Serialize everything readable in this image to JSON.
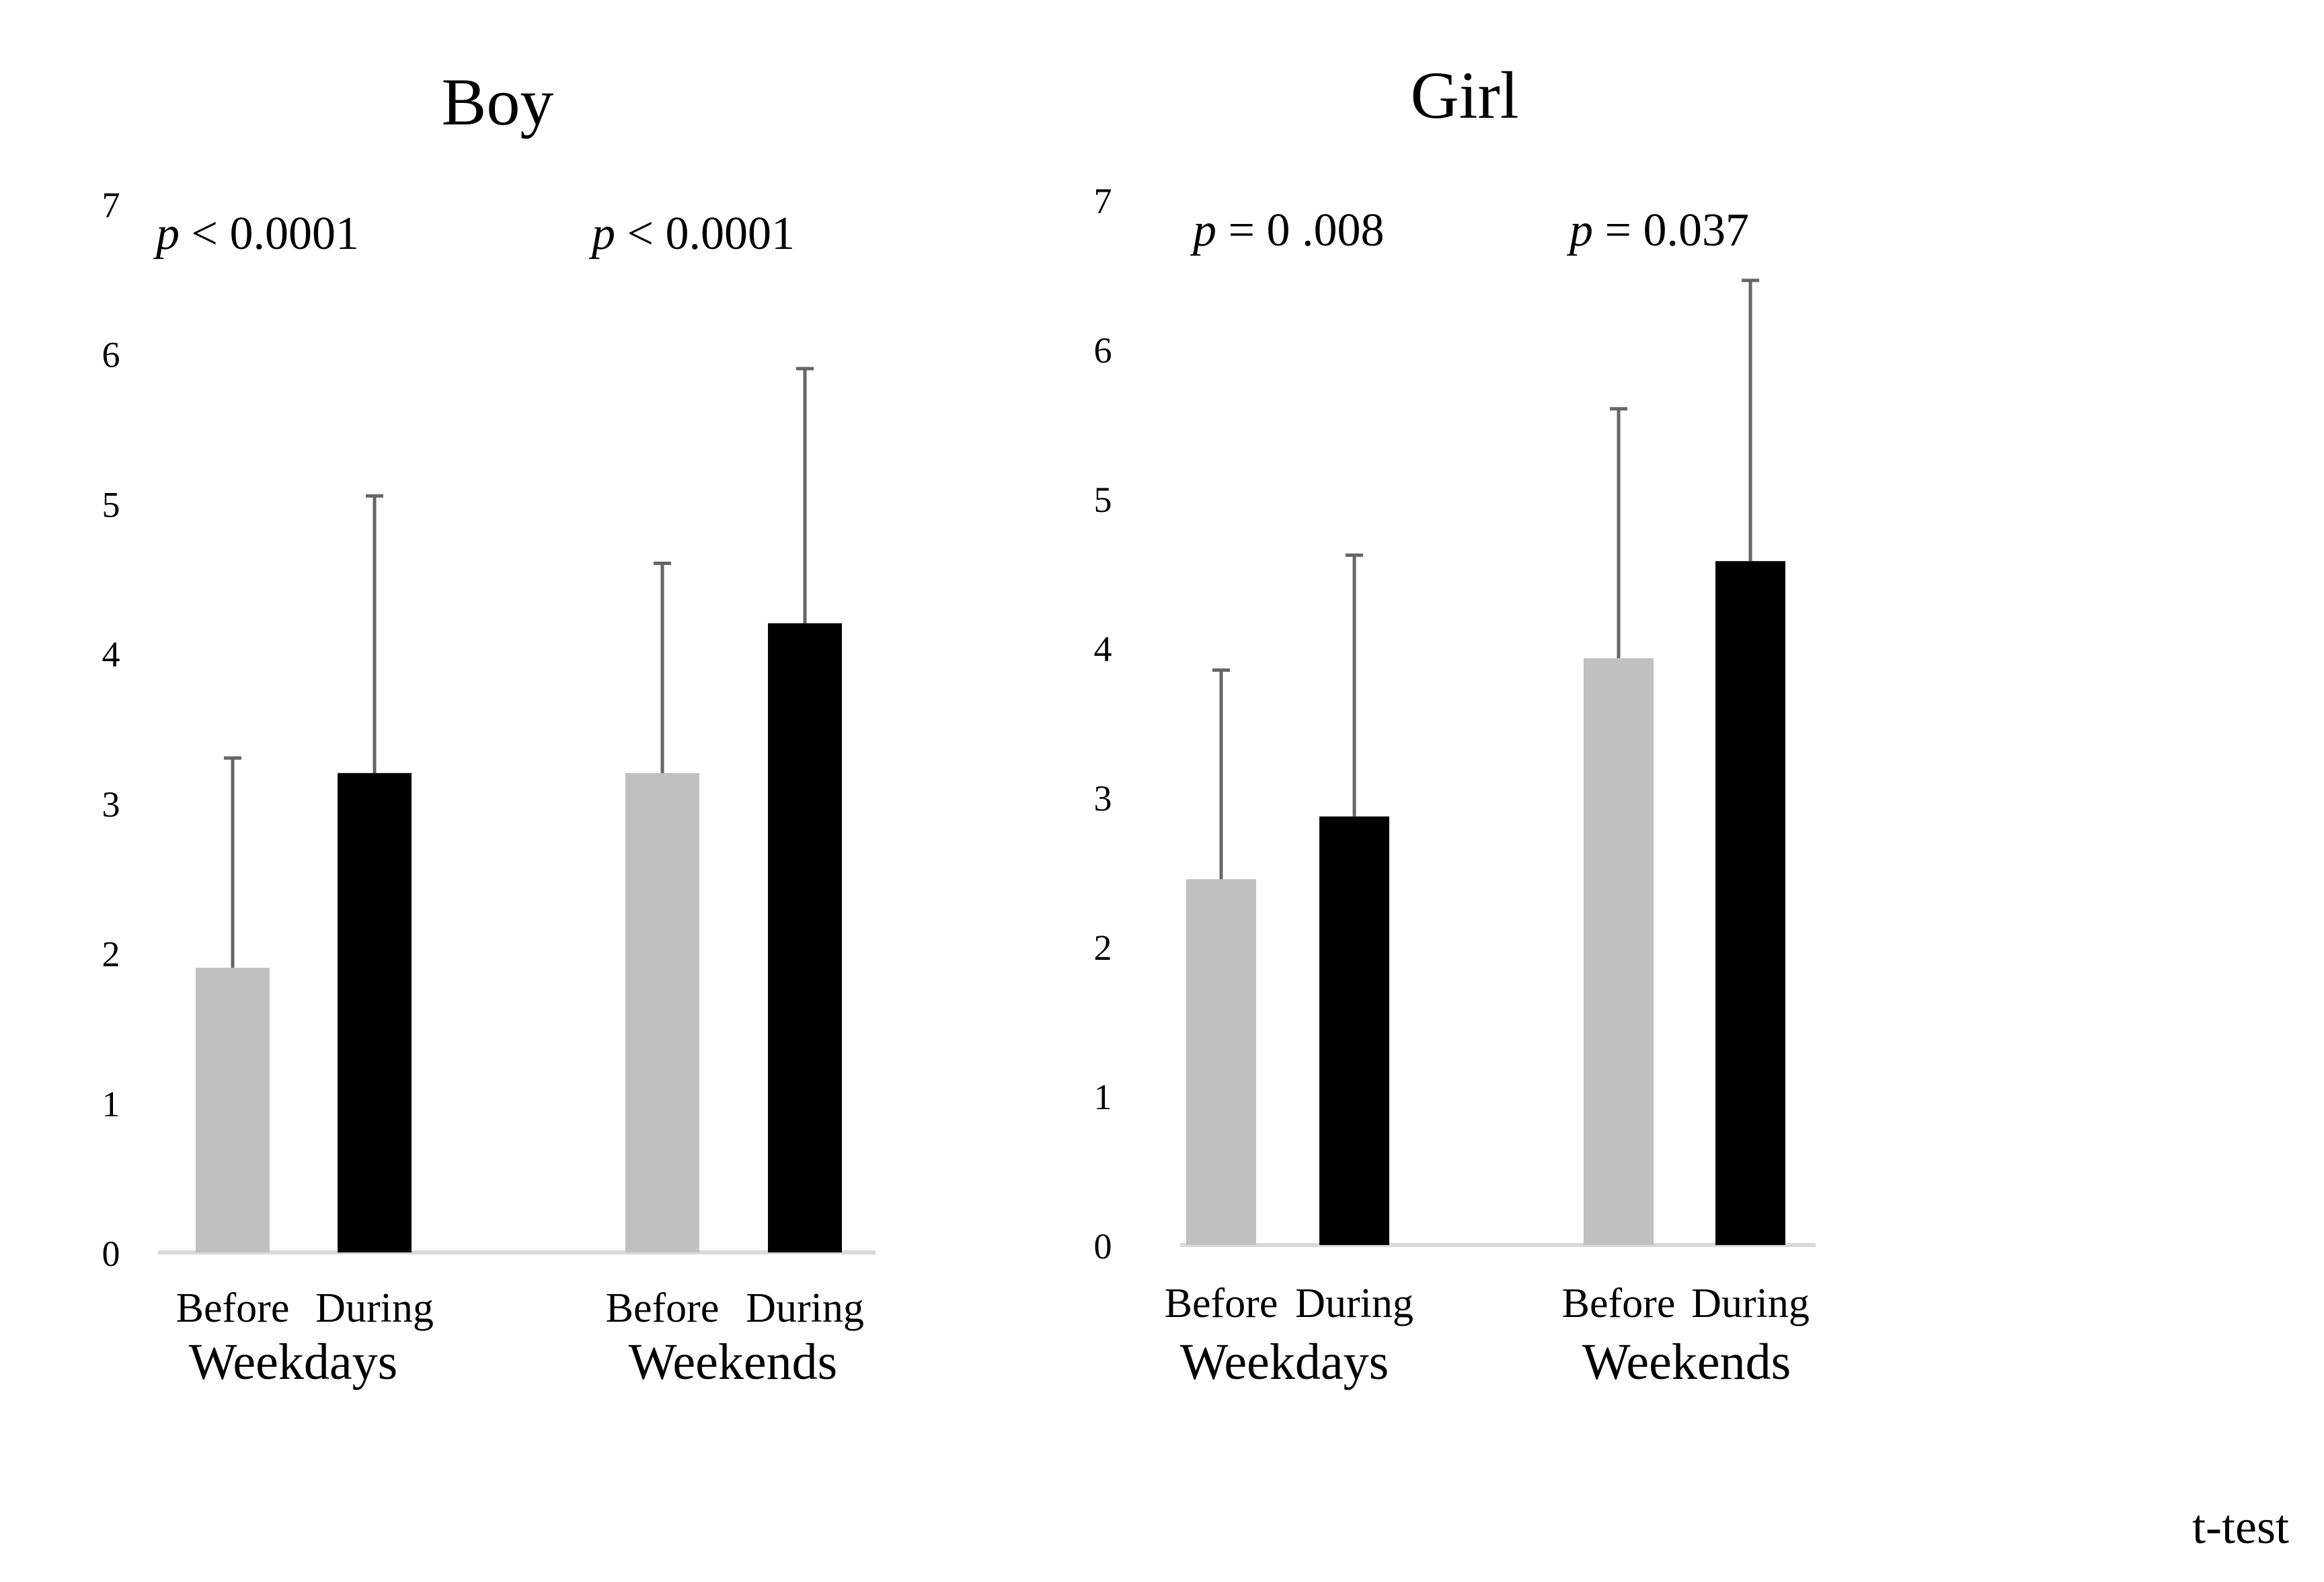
{
  "figure": {
    "note": "t-test",
    "colors": {
      "before": "#c0c0c0",
      "during": "#000000",
      "error_bar": "#666666",
      "axis_line": "#d9d9d9",
      "text": "#000000"
    }
  },
  "chart_data": [
    {
      "type": "bar",
      "title": "Boy",
      "xlabel": "",
      "ylabel": "",
      "ylim": [
        0,
        7
      ],
      "y_ticks": [
        "0",
        "1",
        "2",
        "3",
        "4",
        "5",
        "6",
        "7"
      ],
      "grid": false,
      "groups": [
        {
          "label": "Weekdays",
          "p_prefix": "p",
          "p_text": " < 0.0001",
          "bars": [
            {
              "label": "Before",
              "series": "before",
              "value": 1.9,
              "error": 1.4
            },
            {
              "label": "During",
              "series": "during",
              "value": 3.2,
              "error": 1.85
            }
          ]
        },
        {
          "label": "Weekends",
          "p_prefix": "p",
          "p_text": " < 0.0001",
          "bars": [
            {
              "label": "Before",
              "series": "before",
              "value": 3.2,
              "error": 1.4
            },
            {
              "label": "During",
              "series": "during",
              "value": 4.2,
              "error": 1.7
            }
          ]
        }
      ]
    },
    {
      "type": "bar",
      "title": "Girl",
      "xlabel": "",
      "ylabel": "",
      "ylim": [
        0,
        7
      ],
      "y_ticks": [
        "0",
        "1",
        "2",
        "3",
        "4",
        "5",
        "6",
        "7"
      ],
      "grid": false,
      "groups": [
        {
          "label": "Weekdays",
          "p_prefix": "p",
          "p_text": " = 0 .008",
          "bars": [
            {
              "label": "Before",
              "series": "before",
              "value": 2.45,
              "error": 1.4
            },
            {
              "label": "During",
              "series": "during",
              "value": 2.87,
              "error": 1.75
            }
          ]
        },
        {
          "label": "Weekends",
          "p_prefix": "p",
          "p_text": " = 0.037",
          "bars": [
            {
              "label": "Before",
              "series": "before",
              "value": 3.93,
              "error": 1.67
            },
            {
              "label": "During",
              "series": "during",
              "value": 4.58,
              "error": 1.88
            }
          ]
        }
      ]
    }
  ]
}
